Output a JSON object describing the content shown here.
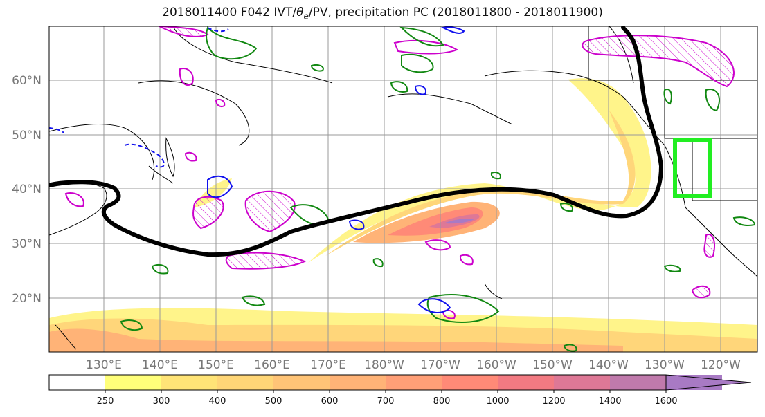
{
  "title": {
    "prefix": "2018011400 F042 IVT/",
    "theta": "θ",
    "theta_sub": "e",
    "suffix": "/PV, precipitation PC (2018011800 - 2018011900)"
  },
  "map": {
    "lat_labels": [
      "60°N",
      "50°N",
      "40°N",
      "30°N",
      "20°N"
    ],
    "lon_labels": [
      "130°E",
      "140°E",
      "150°E",
      "160°E",
      "170°E",
      "180°W",
      "170°W",
      "160°W",
      "150°W",
      "140°W",
      "130°W",
      "120°W"
    ],
    "box_color": "#22ee22",
    "trajectory_color": "#000000",
    "pv_contour_color": "#cc00cc",
    "precip_pos_color": "#118811",
    "precip_neg_color": "#1111ee"
  },
  "colorbar": {
    "levels": [
      "250",
      "300",
      "400",
      "500",
      "600",
      "700",
      "800",
      "1000",
      "1200",
      "1400",
      "1600"
    ],
    "colors": [
      "#ffffff",
      "#ffff7a",
      "#ffe477",
      "#ffd677",
      "#ffc477",
      "#ffb377",
      "#ff9f77",
      "#ff8a77",
      "#f27a82",
      "#de7896",
      "#c07aac",
      "#a87ac4"
    ]
  }
}
